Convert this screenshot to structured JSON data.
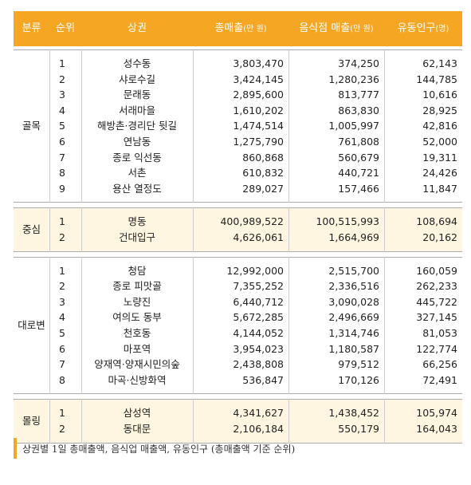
{
  "table": {
    "header": [
      {
        "label": "분류"
      },
      {
        "label": "순위"
      },
      {
        "label": "상권"
      },
      {
        "label": "총매출",
        "unit": "(만 원)"
      },
      {
        "label": "음식점 매출",
        "unit": "(만 원)"
      },
      {
        "label": "유동인구",
        "unit": "(명)"
      }
    ],
    "groups": [
      {
        "name": "골목",
        "rows": [
          [
            "1",
            "성수동",
            "3,803,470",
            "374,250",
            "62,143"
          ],
          [
            "2",
            "샤로수길",
            "3,424,145",
            "1,280,236",
            "144,785"
          ],
          [
            "3",
            "문래동",
            "2,895,600",
            "813,777",
            "10,616"
          ],
          [
            "4",
            "서래마을",
            "1,610,202",
            "863,830",
            "28,925"
          ],
          [
            "5",
            "해방촌·경리단 뒷길",
            "1,474,514",
            "1,005,997",
            "42,816"
          ],
          [
            "6",
            "연남동",
            "1,275,790",
            "761,808",
            "52,000"
          ],
          [
            "7",
            "종로 익선동",
            "860,868",
            "560,679",
            "19,311"
          ],
          [
            "8",
            "서촌",
            "610,832",
            "440,721",
            "24,426"
          ],
          [
            "9",
            "용산 열정도",
            "289,027",
            "157,466",
            "11,847"
          ]
        ]
      },
      {
        "name": "중심",
        "rows": [
          [
            "1",
            "명동",
            "400,989,522",
            "100,515,993",
            "108,694"
          ],
          [
            "2",
            "건대입구",
            "4,626,061",
            "1,664,969",
            "20,162"
          ]
        ]
      },
      {
        "name": "대로변",
        "rows": [
          [
            "1",
            "청담",
            "12,992,000",
            "2,515,700",
            "160,059"
          ],
          [
            "2",
            "종로 피맛골",
            "7,355,252",
            "2,336,516",
            "262,233"
          ],
          [
            "3",
            "노량진",
            "6,440,712",
            "3,090,028",
            "445,722"
          ],
          [
            "4",
            "여의도 동부",
            "5,672,285",
            "2,496,669",
            "327,145"
          ],
          [
            "5",
            "천호동",
            "4,144,052",
            "1,314,746",
            "81,053"
          ],
          [
            "6",
            "마포역",
            "3,954,023",
            "1,180,587",
            "122,774"
          ],
          [
            "7",
            "양재역·양재시민의숲",
            "2,438,808",
            "979,512",
            "66,256"
          ],
          [
            "8",
            "마곡·신방화역",
            "536,847",
            "170,126",
            "72,491"
          ]
        ]
      },
      {
        "name": "몰링",
        "rows": [
          [
            "1",
            "삼성역",
            "4,341,627",
            "1,438,452",
            "105,974"
          ],
          [
            "2",
            "동대문",
            "2,106,184",
            "550,179",
            "164,043"
          ]
        ]
      }
    ]
  },
  "caption": "상권별 1일 총매출액, 음식업 매출액, 유동인구 (총매출액 기준 순위)"
}
